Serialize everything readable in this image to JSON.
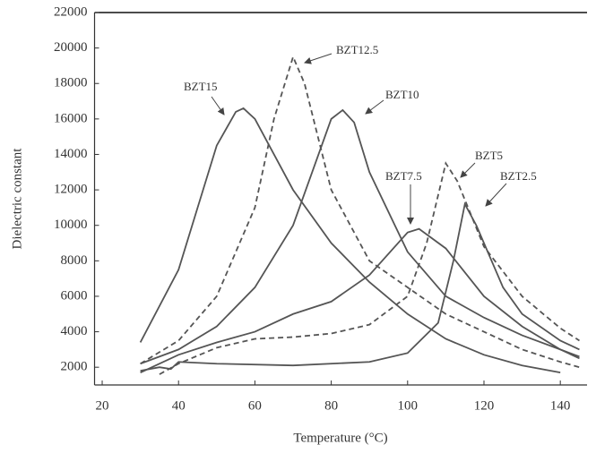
{
  "chart_data": {
    "type": "line",
    "x_label": "Temperature (°C)",
    "y_label": "Dielectric constant",
    "xlim": [
      18,
      147
    ],
    "ylim": [
      1000,
      22000
    ],
    "xticks": [
      20,
      40,
      60,
      80,
      100,
      120,
      140
    ],
    "yticks": [
      2000,
      4000,
      6000,
      8000,
      10000,
      12000,
      14000,
      16000,
      18000,
      20000,
      22000
    ],
    "series": [
      {
        "name": "BZT15",
        "color": "#555555",
        "style": "solid",
        "x": [
          30,
          40,
          45,
          50,
          55,
          57,
          60,
          65,
          70,
          80,
          90,
          100,
          110,
          120,
          130,
          140
        ],
        "values": [
          3400,
          7500,
          11000,
          14500,
          16400,
          16600,
          16000,
          14000,
          12000,
          9000,
          6800,
          5000,
          3600,
          2700,
          2100,
          1700
        ]
      },
      {
        "name": "BZT12.5",
        "color": "#555555",
        "style": "dashed",
        "x": [
          30,
          40,
          50,
          60,
          65,
          70,
          73,
          80,
          90,
          100,
          110,
          120,
          130,
          140,
          145
        ],
        "values": [
          2200,
          3500,
          6000,
          11000,
          16000,
          19500,
          18000,
          12000,
          8000,
          6500,
          5000,
          4000,
          3000,
          2300,
          2000
        ]
      },
      {
        "name": "BZT10",
        "color": "#555555",
        "style": "solid",
        "x": [
          30,
          40,
          50,
          60,
          70,
          75,
          80,
          83,
          86,
          90,
          100,
          110,
          120,
          130,
          140,
          145
        ],
        "values": [
          2200,
          3000,
          4300,
          6500,
          10000,
          13000,
          16000,
          16500,
          15800,
          13000,
          8500,
          6000,
          4800,
          3800,
          3000,
          2600
        ]
      },
      {
        "name": "BZT7.5",
        "color": "#555555",
        "style": "solid",
        "x": [
          30,
          40,
          50,
          60,
          70,
          80,
          90,
          100,
          103,
          110,
          120,
          130,
          140,
          145
        ],
        "values": [
          1700,
          2700,
          3400,
          4000,
          5000,
          5700,
          7200,
          9600,
          9800,
          8700,
          6000,
          4300,
          3000,
          2500
        ]
      },
      {
        "name": "BZT5",
        "color": "#555555",
        "style": "dashed",
        "x": [
          35,
          40,
          50,
          60,
          70,
          80,
          90,
          100,
          105,
          110,
          113,
          120,
          130,
          140,
          145
        ],
        "values": [
          1600,
          2200,
          3100,
          3600,
          3700,
          3900,
          4400,
          6000,
          9000,
          13500,
          12500,
          8800,
          6000,
          4200,
          3500
        ]
      },
      {
        "name": "BZT2.5",
        "color": "#555555",
        "style": "solid",
        "x": [
          30,
          35,
          38,
          40,
          50,
          70,
          90,
          100,
          108,
          112,
          115,
          118,
          125,
          130,
          140,
          145
        ],
        "values": [
          1800,
          2000,
          1900,
          2300,
          2200,
          2100,
          2300,
          2800,
          4500,
          8000,
          11200,
          10000,
          6500,
          5000,
          3500,
          3000
        ]
      }
    ]
  }
}
